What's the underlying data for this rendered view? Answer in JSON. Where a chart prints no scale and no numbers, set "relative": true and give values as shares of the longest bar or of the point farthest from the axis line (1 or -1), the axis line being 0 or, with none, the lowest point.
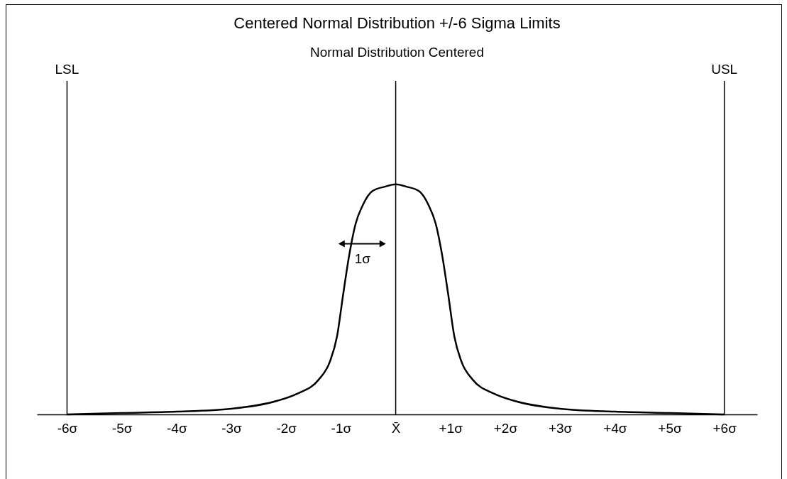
{
  "chart_data": {
    "type": "line",
    "title": "Centered Normal Distribution +/-6 Sigma Limits",
    "subtitle": "Normal Distribution Centered",
    "relative": true,
    "x": [
      -6,
      -5,
      -4,
      -3,
      -2.15,
      -1.8,
      -1.41,
      -1.2,
      -1.07,
      -0.96,
      -0.85,
      -0.73,
      -0.6,
      -0.43,
      -0.2,
      0,
      0.2,
      0.43,
      0.6,
      0.73,
      0.85,
      0.96,
      1.07,
      1.2,
      1.41,
      1.8,
      2.15,
      3,
      4,
      5,
      6
    ],
    "series": [
      {
        "color": "#000000",
        "values": [
          0,
          0.006,
          0.012,
          0.025,
          0.06,
          0.09,
          0.15,
          0.23,
          0.34,
          0.52,
          0.69,
          0.83,
          0.91,
          0.97,
          0.99,
          1,
          0.99,
          0.97,
          0.91,
          0.83,
          0.69,
          0.52,
          0.34,
          0.23,
          0.15,
          0.09,
          0.06,
          0.025,
          0.012,
          0.006,
          0
        ]
      }
    ],
    "xlim": [
      -6.55,
      6.6
    ],
    "xticks": [
      {
        "value": -6,
        "label": "-6σ"
      },
      {
        "value": -5,
        "label": "-5σ"
      },
      {
        "value": -4,
        "label": "-4σ"
      },
      {
        "value": -3,
        "label": "-3σ"
      },
      {
        "value": -2,
        "label": "-2σ"
      },
      {
        "value": -1,
        "label": "-1σ"
      },
      {
        "value": 0,
        "label": "X̄"
      },
      {
        "value": 1,
        "label": "+1σ"
      },
      {
        "value": 2,
        "label": "+2σ"
      },
      {
        "value": 3,
        "label": "+3σ"
      },
      {
        "value": 4,
        "label": "+4σ"
      },
      {
        "value": 5,
        "label": "+5σ"
      },
      {
        "value": 6,
        "label": "+6σ"
      }
    ],
    "ref_lines": [
      {
        "axis": "x",
        "value": -6,
        "label": "LSL"
      },
      {
        "axis": "x",
        "value": 0,
        "label": null
      },
      {
        "axis": "x",
        "value": 6,
        "label": "USL"
      }
    ],
    "annotations": [
      "1σ"
    ],
    "grid": false,
    "legend": false
  }
}
